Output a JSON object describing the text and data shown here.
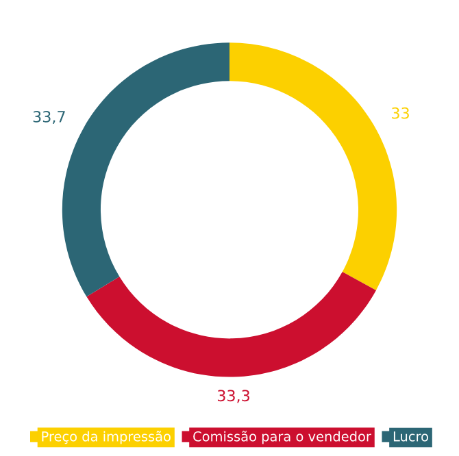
{
  "chart_data": {
    "type": "donut",
    "categories": [
      "Preço da impressão",
      "Comissão para o vendedor",
      "Lucro"
    ],
    "values": [
      33,
      33.3,
      33.7
    ],
    "value_labels": [
      "33",
      "33,3",
      "33,7"
    ],
    "colors": [
      "#fcd000",
      "#cc0f2f",
      "#2c6675"
    ],
    "legend": "bottom"
  }
}
